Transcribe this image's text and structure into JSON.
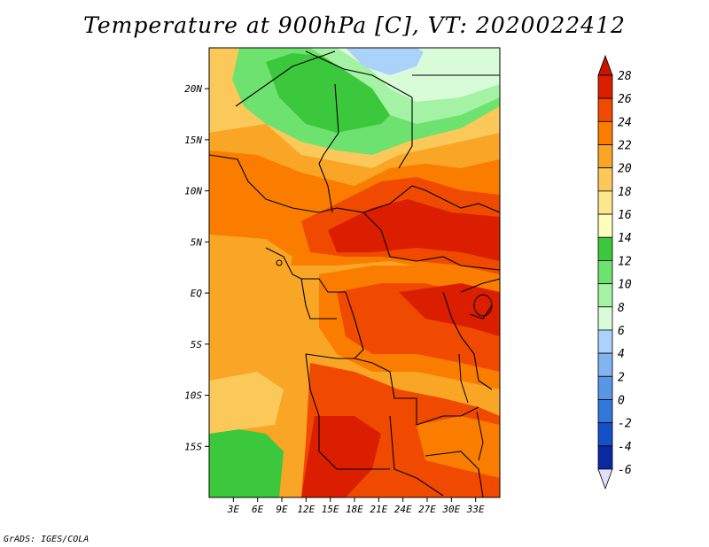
{
  "title": "Temperature at 900hPa [C], VT: 2020022412",
  "credit": "GrADS: IGES/COLA",
  "map": {
    "lon_range": [
      0,
      36
    ],
    "lat_range": [
      -20,
      24
    ],
    "lat_ticks": [
      {
        "value": 20,
        "label": "20N"
      },
      {
        "value": 15,
        "label": "15N"
      },
      {
        "value": 10,
        "label": "10N"
      },
      {
        "value": 5,
        "label": "5N"
      },
      {
        "value": 0,
        "label": "EQ"
      },
      {
        "value": -5,
        "label": "5S"
      },
      {
        "value": -10,
        "label": "10S"
      },
      {
        "value": -15,
        "label": "15S"
      }
    ],
    "lon_ticks": [
      {
        "value": 3,
        "label": "3E"
      },
      {
        "value": 6,
        "label": "6E"
      },
      {
        "value": 9,
        "label": "9E"
      },
      {
        "value": 12,
        "label": "12E"
      },
      {
        "value": 15,
        "label": "15E"
      },
      {
        "value": 18,
        "label": "18E"
      },
      {
        "value": 21,
        "label": "21E"
      },
      {
        "value": 24,
        "label": "24E"
      },
      {
        "value": 27,
        "label": "27E"
      },
      {
        "value": 30,
        "label": "30E"
      },
      {
        "value": 33,
        "label": "33E"
      }
    ]
  },
  "colorbar": {
    "levels": [
      "28",
      "26",
      "24",
      "22",
      "20",
      "18",
      "16",
      "14",
      "12",
      "10",
      "8",
      "6",
      "4",
      "2",
      "0",
      "-2",
      "-4",
      "-6"
    ],
    "colors": [
      "#a00000",
      "#dc1e00",
      "#f04a00",
      "#fa7d00",
      "#f9a526",
      "#fbc85a",
      "#fde68c",
      "#fefebc",
      "#3cc83c",
      "#6ee26e",
      "#a4f2a4",
      "#d8fcd8",
      "#aad2fa",
      "#82b4f0",
      "#5a96e6",
      "#3278dc",
      "#1450c8",
      "#0a28a0",
      "#00106e"
    ],
    "top_arrow_color": "#c81400",
    "bottom_arrow_color": "#e0e0f8"
  }
}
